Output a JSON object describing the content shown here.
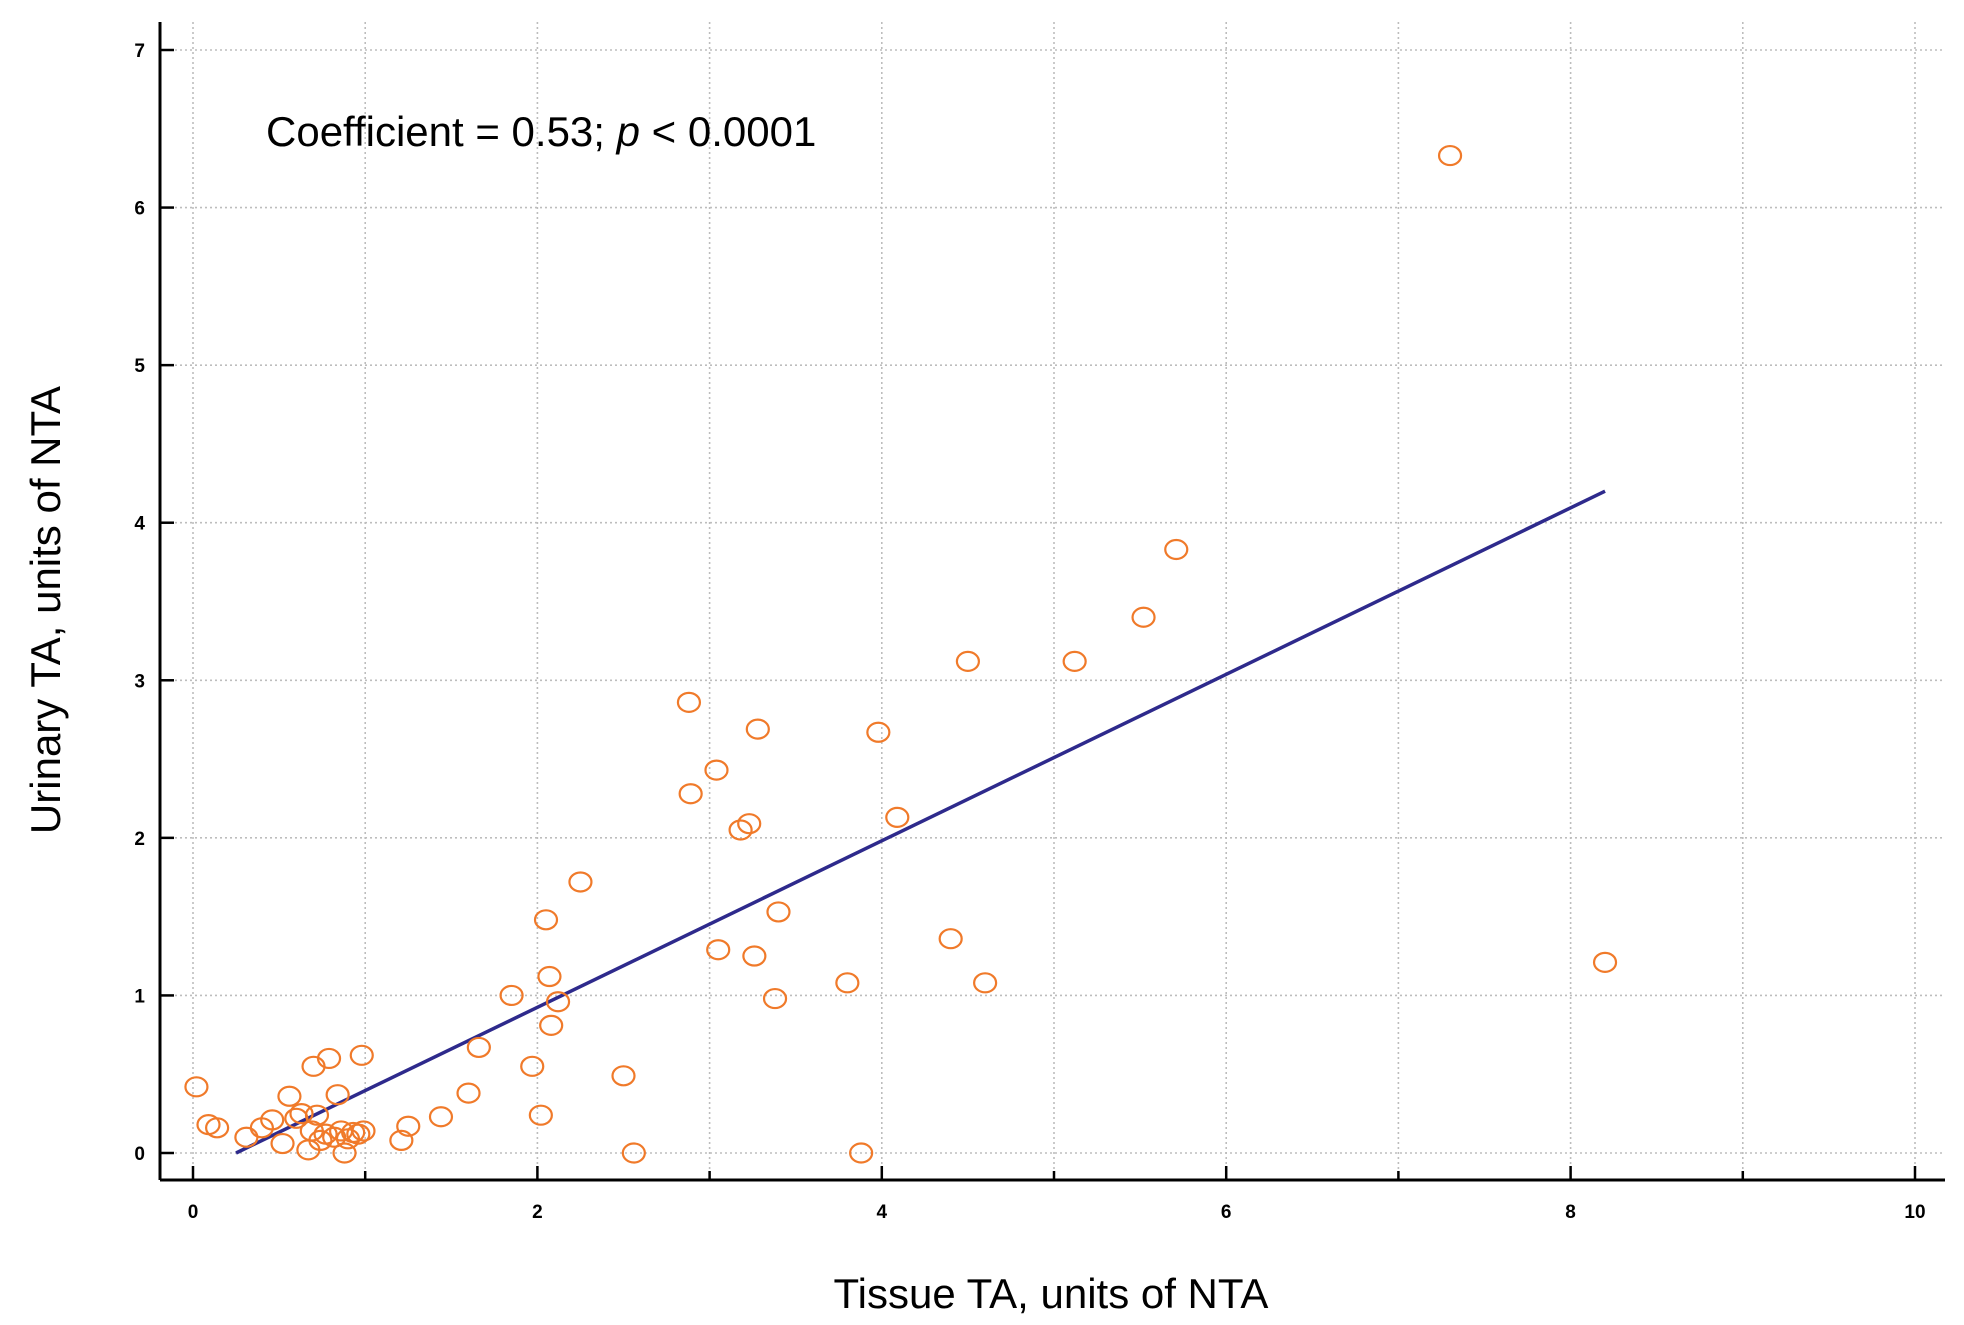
{
  "chart_data": {
    "type": "scatter",
    "title": "",
    "xlabel": "Tissue TA, units of NTA",
    "ylabel": "Urinary TA, units of NTA",
    "xlim": [
      0,
      10
    ],
    "ylim": [
      0,
      7
    ],
    "xticks": [
      0,
      2,
      4,
      6,
      8,
      10
    ],
    "yticks": [
      0,
      1,
      2,
      3,
      4,
      5,
      6,
      7
    ],
    "grid": true,
    "annotation": {
      "prefix": "Coefficient = 0.53; ",
      "p_symbol": "p",
      "suffix": " < 0.0001"
    },
    "colors": {
      "points": "#f07a2a",
      "fit_line": "#2e2a8c",
      "grid": "#bdbdbd",
      "axis": "#000000"
    },
    "fit_line": {
      "x": [
        0.25,
        8.2
      ],
      "y": [
        0.0,
        4.2
      ]
    },
    "points": [
      {
        "x": 0.02,
        "y": 0.42
      },
      {
        "x": 0.09,
        "y": 0.18
      },
      {
        "x": 0.14,
        "y": 0.16
      },
      {
        "x": 0.31,
        "y": 0.1
      },
      {
        "x": 0.4,
        "y": 0.16
      },
      {
        "x": 0.46,
        "y": 0.21
      },
      {
        "x": 0.52,
        "y": 0.06
      },
      {
        "x": 0.56,
        "y": 0.36
      },
      {
        "x": 0.6,
        "y": 0.22
      },
      {
        "x": 0.63,
        "y": 0.25
      },
      {
        "x": 0.67,
        "y": 0.02
      },
      {
        "x": 0.69,
        "y": 0.14
      },
      {
        "x": 0.7,
        "y": 0.55
      },
      {
        "x": 0.72,
        "y": 0.24
      },
      {
        "x": 0.74,
        "y": 0.08
      },
      {
        "x": 0.77,
        "y": 0.12
      },
      {
        "x": 0.79,
        "y": 0.6
      },
      {
        "x": 0.82,
        "y": 0.1
      },
      {
        "x": 0.84,
        "y": 0.37
      },
      {
        "x": 0.86,
        "y": 0.14
      },
      {
        "x": 0.88,
        "y": 0.0
      },
      {
        "x": 0.9,
        "y": 0.09
      },
      {
        "x": 0.93,
        "y": 0.13
      },
      {
        "x": 0.96,
        "y": 0.12
      },
      {
        "x": 0.98,
        "y": 0.62
      },
      {
        "x": 0.99,
        "y": 0.14
      },
      {
        "x": 1.21,
        "y": 0.08
      },
      {
        "x": 1.25,
        "y": 0.17
      },
      {
        "x": 1.44,
        "y": 0.23
      },
      {
        "x": 1.6,
        "y": 0.38
      },
      {
        "x": 1.66,
        "y": 0.67
      },
      {
        "x": 1.85,
        "y": 1.0
      },
      {
        "x": 1.97,
        "y": 0.55
      },
      {
        "x": 2.02,
        "y": 0.24
      },
      {
        "x": 2.05,
        "y": 1.48
      },
      {
        "x": 2.07,
        "y": 1.12
      },
      {
        "x": 2.08,
        "y": 0.81
      },
      {
        "x": 2.12,
        "y": 0.96
      },
      {
        "x": 2.25,
        "y": 1.72
      },
      {
        "x": 2.5,
        "y": 0.49
      },
      {
        "x": 2.56,
        "y": 0.0
      },
      {
        "x": 2.88,
        "y": 2.86
      },
      {
        "x": 2.89,
        "y": 2.28
      },
      {
        "x": 3.04,
        "y": 2.43
      },
      {
        "x": 3.05,
        "y": 1.29
      },
      {
        "x": 3.18,
        "y": 2.05
      },
      {
        "x": 3.23,
        "y": 2.09
      },
      {
        "x": 3.26,
        "y": 1.25
      },
      {
        "x": 3.28,
        "y": 2.69
      },
      {
        "x": 3.38,
        "y": 0.98
      },
      {
        "x": 3.4,
        "y": 1.53
      },
      {
        "x": 3.8,
        "y": 1.08
      },
      {
        "x": 3.88,
        "y": 0.0
      },
      {
        "x": 3.98,
        "y": 2.67
      },
      {
        "x": 4.09,
        "y": 2.13
      },
      {
        "x": 4.4,
        "y": 1.36
      },
      {
        "x": 4.5,
        "y": 3.12
      },
      {
        "x": 4.6,
        "y": 1.08
      },
      {
        "x": 5.12,
        "y": 3.12
      },
      {
        "x": 5.52,
        "y": 3.4
      },
      {
        "x": 5.71,
        "y": 3.83
      },
      {
        "x": 7.3,
        "y": 6.33
      },
      {
        "x": 8.2,
        "y": 1.21
      }
    ]
  }
}
